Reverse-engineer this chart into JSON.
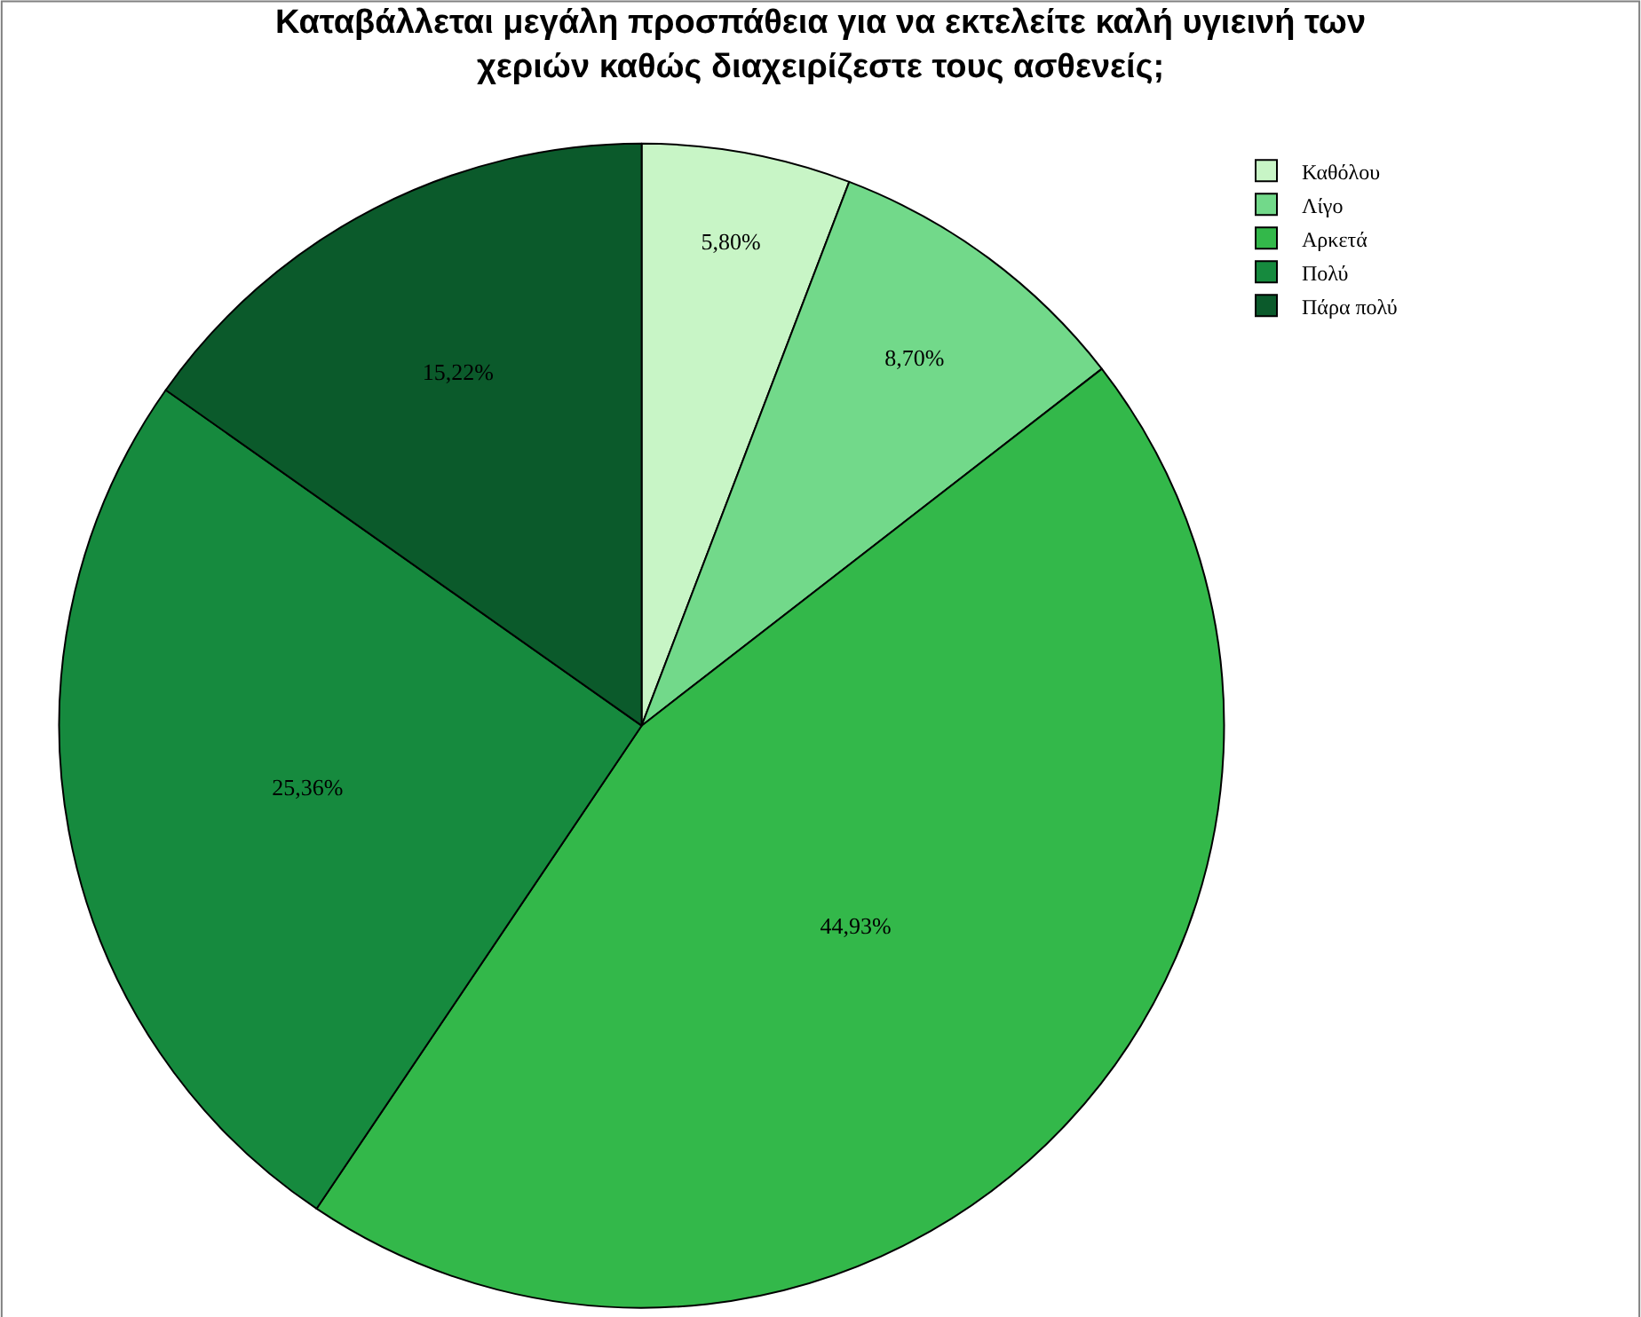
{
  "chart_data": {
    "type": "pie",
    "title": "Καταβάλλεται μεγάλη προσπάθεια για να εκτελείτε καλή υγιεινή των χεριών καθώς διαχειρίζεστε τους ασθενείς;",
    "categories": [
      "Καθόλου",
      "Λίγο",
      "Αρκετά",
      "Πολύ",
      "Πάρα πολύ"
    ],
    "values": [
      5.8,
      8.7,
      44.93,
      25.36,
      15.22
    ],
    "value_labels": [
      "5,80%",
      "8,70%",
      "44,93%",
      "25,36%",
      "15,22%"
    ],
    "colors": [
      "#c8f5c6",
      "#72d98a",
      "#33b84a",
      "#168a3e",
      "#0b5a2b"
    ],
    "legend": "top right"
  }
}
